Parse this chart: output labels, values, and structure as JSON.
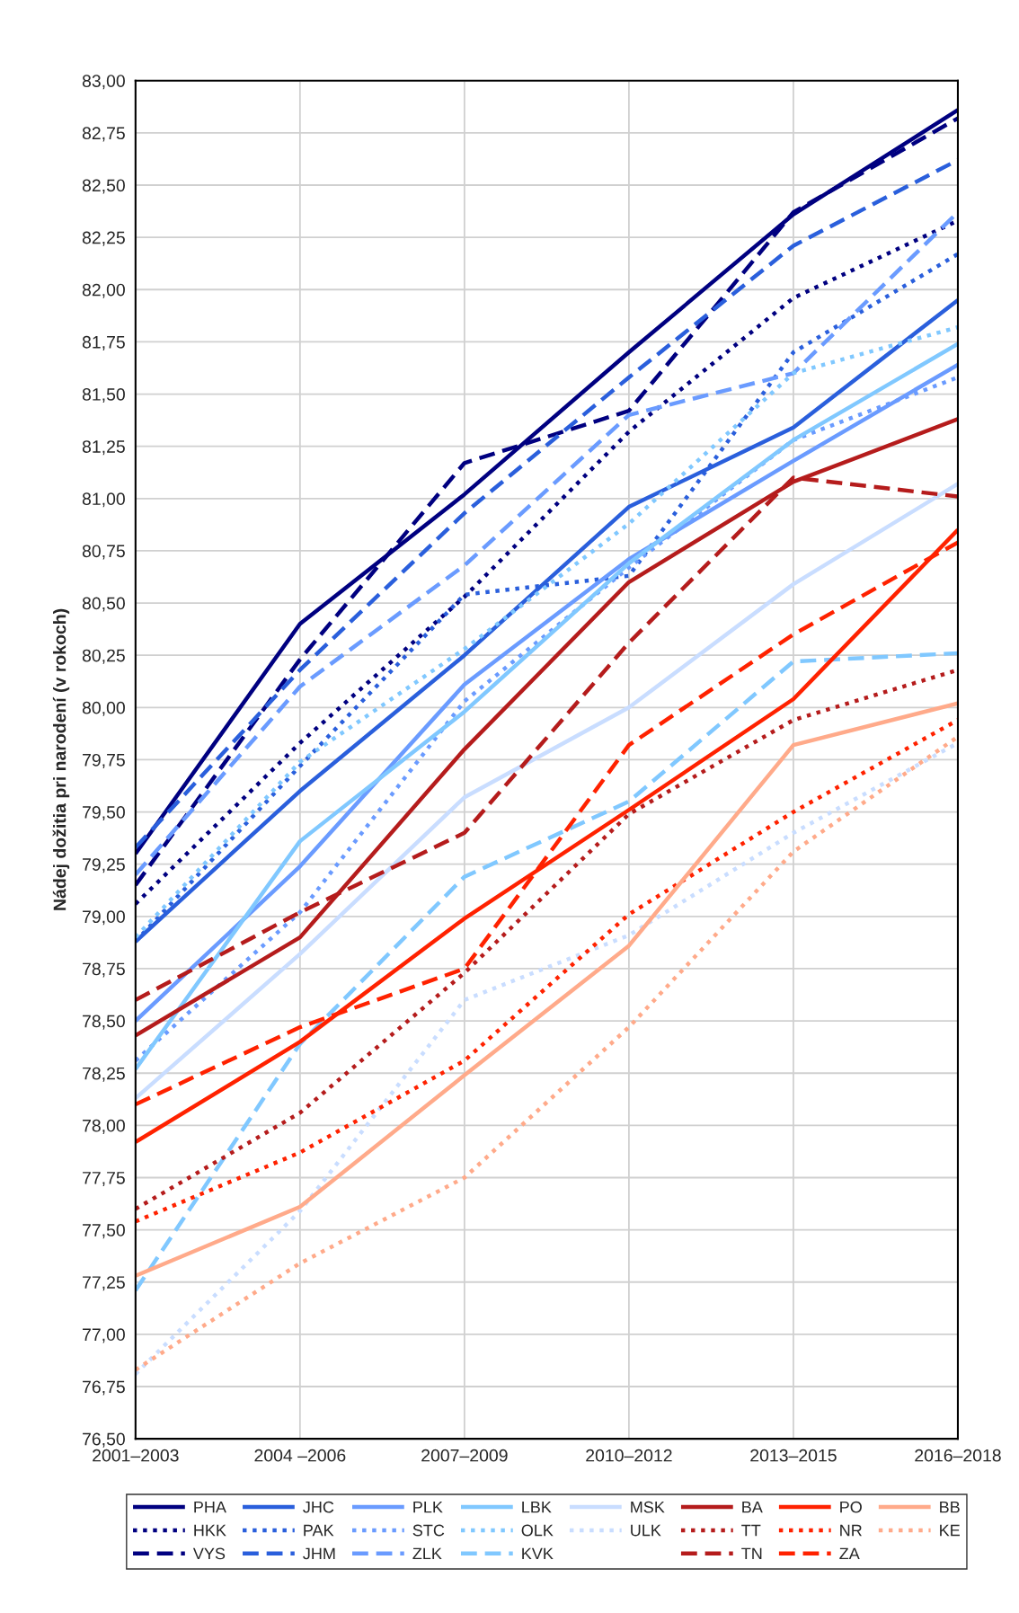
{
  "chart_data": {
    "type": "line",
    "ylabel": "Nádej dožitia pri narodení (v rokoch)",
    "categories": [
      "2001–2003",
      "2004 –2006",
      "2007–2009",
      "2010–2012",
      "2013–2015",
      "2016–2018"
    ],
    "ylim": [
      76.5,
      83.0
    ],
    "yticks": [
      {
        "value": 76.5,
        "label": "76,50"
      },
      {
        "value": 76.75,
        "label": "76,75"
      },
      {
        "value": 77.0,
        "label": "77,00"
      },
      {
        "value": 77.25,
        "label": "77,25"
      },
      {
        "value": 77.5,
        "label": "77,50"
      },
      {
        "value": 77.75,
        "label": "77,75"
      },
      {
        "value": 78.0,
        "label": "78,00"
      },
      {
        "value": 78.25,
        "label": "78,25"
      },
      {
        "value": 78.5,
        "label": "78,50"
      },
      {
        "value": 78.75,
        "label": "78,75"
      },
      {
        "value": 79.0,
        "label": "79,00"
      },
      {
        "value": 79.25,
        "label": "79,25"
      },
      {
        "value": 79.5,
        "label": "79,50"
      },
      {
        "value": 79.75,
        "label": "79,75"
      },
      {
        "value": 80.0,
        "label": "80,00"
      },
      {
        "value": 80.25,
        "label": "80,25"
      },
      {
        "value": 80.5,
        "label": "80,50"
      },
      {
        "value": 80.75,
        "label": "80,75"
      },
      {
        "value": 81.0,
        "label": "81,00"
      },
      {
        "value": 81.25,
        "label": "81,25"
      },
      {
        "value": 81.5,
        "label": "81,50"
      },
      {
        "value": 81.75,
        "label": "81,75"
      },
      {
        "value": 82.0,
        "label": "82,00"
      },
      {
        "value": 82.25,
        "label": "82,25"
      },
      {
        "value": 82.5,
        "label": "82,50"
      },
      {
        "value": 82.75,
        "label": "82,75"
      },
      {
        "value": 83.0,
        "label": "83,00"
      }
    ],
    "grid": true,
    "legend": "bottom",
    "marker": "none",
    "series": [
      {
        "name": "PHA",
        "color": "#000080",
        "line_style": "solid",
        "values": [
          79.3,
          80.4,
          81.02,
          81.7,
          82.36,
          82.86
        ]
      },
      {
        "name": "HKK",
        "color": "#000080",
        "line_style": "dotted",
        "values": [
          79.06,
          79.83,
          80.53,
          81.32,
          81.96,
          82.33
        ]
      },
      {
        "name": "VYS",
        "color": "#000080",
        "line_style": "dashed",
        "values": [
          79.15,
          80.23,
          81.17,
          81.42,
          82.37,
          82.82
        ]
      },
      {
        "name": "JHC",
        "color": "#2a5fdc",
        "line_style": "solid",
        "values": [
          78.88,
          79.6,
          80.25,
          80.96,
          81.34,
          81.95
        ]
      },
      {
        "name": "PAK",
        "color": "#2a5fdc",
        "line_style": "dotted",
        "values": [
          78.88,
          79.72,
          80.54,
          80.63,
          81.7,
          82.17
        ]
      },
      {
        "name": "JHM",
        "color": "#2a5fdc",
        "line_style": "dashed",
        "values": [
          79.33,
          80.18,
          80.93,
          81.58,
          82.21,
          82.62
        ]
      },
      {
        "name": "PLK",
        "color": "#6a9bff",
        "line_style": "solid",
        "values": [
          78.5,
          79.24,
          80.11,
          80.71,
          81.18,
          81.64
        ]
      },
      {
        "name": "STC",
        "color": "#6a9bff",
        "line_style": "dotted",
        "values": [
          78.31,
          79.02,
          80.03,
          80.67,
          81.28,
          81.58
        ]
      },
      {
        "name": "ZLK",
        "color": "#6a9bff",
        "line_style": "dashed",
        "values": [
          79.2,
          80.1,
          80.68,
          81.4,
          81.6,
          82.37
        ]
      },
      {
        "name": "LBK",
        "color": "#80c8ff",
        "line_style": "solid",
        "values": [
          78.27,
          79.36,
          79.98,
          80.69,
          81.28,
          81.74
        ]
      },
      {
        "name": "OLK",
        "color": "#80c8ff",
        "line_style": "dotted",
        "values": [
          78.9,
          79.74,
          80.28,
          80.88,
          81.6,
          81.82
        ]
      },
      {
        "name": "KVK",
        "color": "#80c8ff",
        "line_style": "dashed",
        "values": [
          77.21,
          78.39,
          79.19,
          79.55,
          80.22,
          80.26
        ]
      },
      {
        "name": "MSK",
        "color": "#c9ddff",
        "line_style": "solid",
        "values": [
          78.13,
          78.82,
          79.57,
          80.0,
          80.59,
          81.07
        ]
      },
      {
        "name": "ULK",
        "color": "#c9ddff",
        "line_style": "dotted",
        "values": [
          76.81,
          77.59,
          78.6,
          78.91,
          79.4,
          79.83
        ]
      },
      {
        "name": "BA",
        "color": "#b51c1c",
        "line_style": "solid",
        "values": [
          78.43,
          78.9,
          79.8,
          80.6,
          81.08,
          81.38
        ]
      },
      {
        "name": "TT",
        "color": "#b51c1c",
        "line_style": "dotted",
        "values": [
          77.6,
          78.06,
          78.73,
          79.49,
          79.94,
          80.18
        ]
      },
      {
        "name": "TN",
        "color": "#b51c1c",
        "line_style": "dashed",
        "values": [
          78.6,
          79.02,
          79.4,
          80.31,
          81.1,
          81.01
        ]
      },
      {
        "name": "PO",
        "color": "#ff2200",
        "line_style": "solid",
        "values": [
          77.92,
          78.4,
          78.99,
          79.51,
          80.04,
          80.85
        ]
      },
      {
        "name": "NR",
        "color": "#ff2200",
        "line_style": "dotted",
        "values": [
          77.54,
          77.87,
          78.31,
          79.01,
          79.5,
          79.94
        ]
      },
      {
        "name": "ZA",
        "color": "#ff2200",
        "line_style": "dashed",
        "values": [
          78.1,
          78.47,
          78.75,
          79.82,
          80.35,
          80.79
        ]
      },
      {
        "name": "BB",
        "color": "#ffaa8a",
        "line_style": "solid",
        "values": [
          77.28,
          77.61,
          78.24,
          78.86,
          79.82,
          80.02
        ]
      },
      {
        "name": "KE",
        "color": "#ffaa8a",
        "line_style": "dotted",
        "values": [
          76.83,
          77.34,
          77.75,
          78.47,
          79.31,
          79.86
        ]
      }
    ]
  }
}
